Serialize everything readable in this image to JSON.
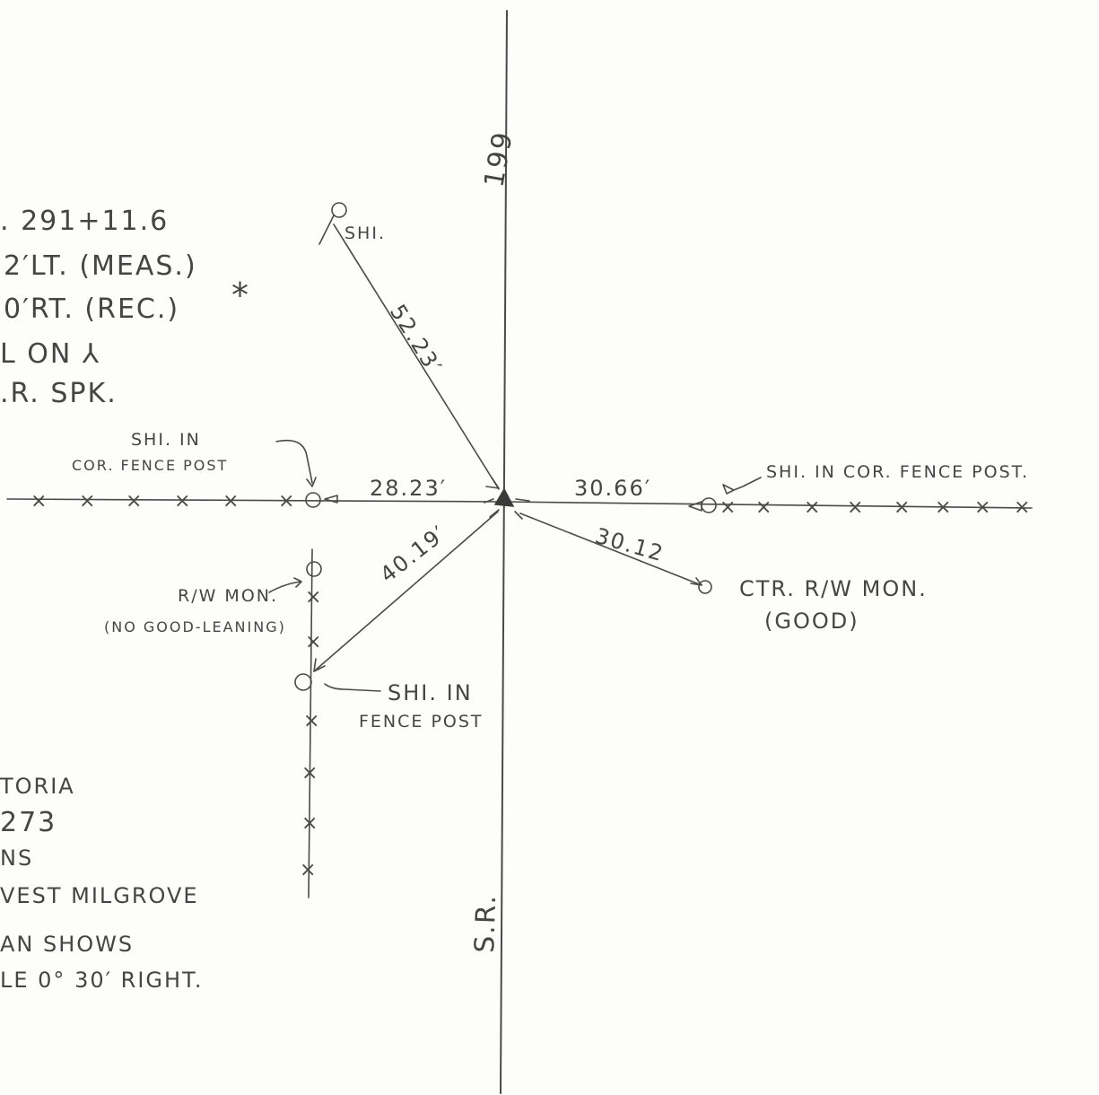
{
  "route": {
    "number_label": "199",
    "prefix_label": "S.R."
  },
  "station_notes": [
    ". 291+11.6",
    "2′LT. (MEAS.)",
    "0′RT. (REC.)",
    "L  ON  ⅄",
    ".R. SPK."
  ],
  "asterisk": "*",
  "location_notes": [
    "TORIA",
    "273",
    "NS",
    "VEST MILGROVE"
  ],
  "plan_notes": [
    "AN SHOWS",
    "LE 0° 30′ RIGHT."
  ],
  "ties": {
    "nw": {
      "distance": "52.23′",
      "label": "SHI."
    },
    "west": {
      "distance": "28.23′",
      "label_lines": [
        "SHI. IN",
        "COR. FENCE POST"
      ]
    },
    "east": {
      "distance": "30.66′",
      "label": "SHI. IN COR. FENCE POST."
    },
    "se": {
      "distance": "30.12",
      "label_lines": [
        "CTR. R/W MON.",
        "(GOOD)"
      ]
    },
    "sw": {
      "distance": "40.19′",
      "label_lines": [
        "SHI. IN",
        "FENCE POST"
      ]
    }
  },
  "rw_monument": {
    "label_lines": [
      "R/W MON.",
      "(NO GOOD-LEANING)"
    ]
  },
  "fence_mark": "×"
}
